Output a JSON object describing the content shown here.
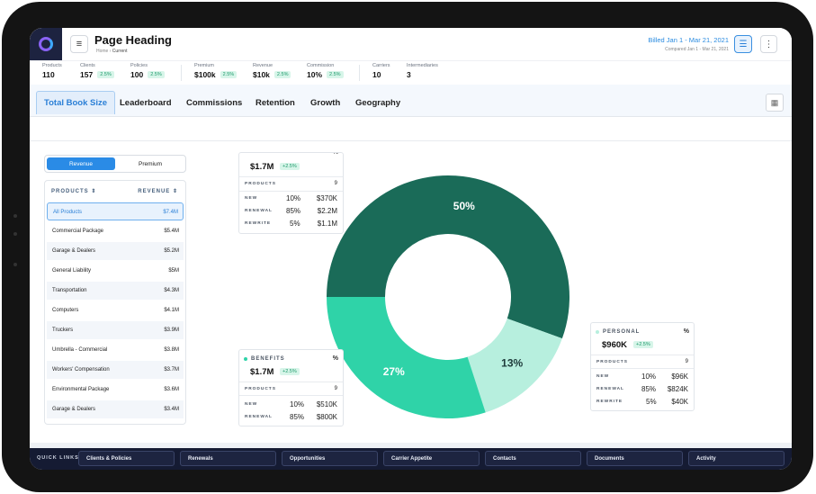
{
  "header": {
    "title": "Page Heading",
    "breadcrumb": [
      "Home",
      "Current"
    ],
    "billed": "Billed  Jan 1 - Mar 21, 2021",
    "compared": "Compared Jan 1 - Mar 21, 2021"
  },
  "stats": [
    {
      "label": "Products",
      "value": "110",
      "badge": ""
    },
    {
      "label": "Clients",
      "value": "157",
      "badge": "2.5%"
    },
    {
      "label": "Policies",
      "value": "100",
      "badge": "2.5%"
    },
    {
      "label": "Premium",
      "value": "$100k",
      "badge": "2.5%"
    },
    {
      "label": "Revenue",
      "value": "$10k",
      "badge": "2.5%"
    },
    {
      "label": "Commission",
      "value": "10%",
      "badge": "2.5%"
    },
    {
      "label": "Carriers",
      "value": "10",
      "badge": ""
    },
    {
      "label": "Intermediaries",
      "value": "3",
      "badge": ""
    }
  ],
  "tabs": [
    "Total Book Size",
    "Leaderboard",
    "Commissions",
    "Retention",
    "Growth",
    "Geography"
  ],
  "toggle": {
    "on": "Revenue",
    "off": "Premium"
  },
  "products": {
    "headers": [
      "PRODUCTS ⇕",
      "REVENUE ⇕"
    ],
    "rows": [
      {
        "name": "All Products",
        "value": "$7.4M"
      },
      {
        "name": "Commercial Package",
        "value": "$5.4M"
      },
      {
        "name": "Garage & Dealers",
        "value": "$5.2M"
      },
      {
        "name": "General Liability",
        "value": "$5M"
      },
      {
        "name": "Transportation",
        "value": "$4.3M"
      },
      {
        "name": "Computers",
        "value": "$4.1M"
      },
      {
        "name": "Truckers",
        "value": "$3.9M"
      },
      {
        "name": "Umbrella - Commercial",
        "value": "$3.8M"
      },
      {
        "name": "Workers' Compensation",
        "value": "$3.7M"
      },
      {
        "name": "Environmental Package",
        "value": "$3.6M"
      },
      {
        "name": "Garage & Dealers",
        "value": "$3.4M"
      }
    ]
  },
  "cards": {
    "top": {
      "amount": "$1.7M",
      "badge": "+2.5%",
      "products_label": "PRODUCTS",
      "products": "9",
      "rows": [
        [
          "NEW",
          "10%",
          "$370K"
        ],
        [
          "RENEWAL",
          "85%",
          "$2.2M"
        ],
        [
          "REWRITE",
          "5%",
          "$1.1M"
        ]
      ]
    },
    "benefits": {
      "name": "BENEFITS",
      "pct_symbol": "%",
      "amount": "$1.7M",
      "badge": "+2.5%",
      "products_label": "PRODUCTS",
      "products": "9",
      "rows": [
        [
          "NEW",
          "10%",
          "$510K"
        ],
        [
          "RENEWAL",
          "85%",
          "$800K"
        ]
      ]
    },
    "personal": {
      "name": "PERSONAL",
      "pct_symbol": "%",
      "amount": "$960K",
      "badge": "+2.5%",
      "products_label": "PRODUCTS",
      "products": "9",
      "rows": [
        [
          "NEW",
          "10%",
          "$96K"
        ],
        [
          "RENEWAL",
          "85%",
          "$824K"
        ],
        [
          "REWRITE",
          "5%",
          "$40K"
        ]
      ]
    }
  },
  "chart_data": {
    "type": "pie",
    "slices": [
      {
        "label": "50%",
        "value": 50,
        "color": "#1a6b58"
      },
      {
        "label": "13%",
        "value": 13,
        "color": "#b7efde"
      },
      {
        "label": "27%",
        "value": 27,
        "color": "#2fd3a8"
      }
    ],
    "colors": {
      "commercial": "#1a6b58",
      "personal": "#b7efde",
      "benefits": "#2fd3a8"
    }
  },
  "quick_links": {
    "title": "QUICK LINKS",
    "items": [
      "Clients & Policies",
      "Renewals",
      "Opportunities",
      "Carrier Appetite",
      "Contacts",
      "Documents",
      "Activity"
    ]
  }
}
